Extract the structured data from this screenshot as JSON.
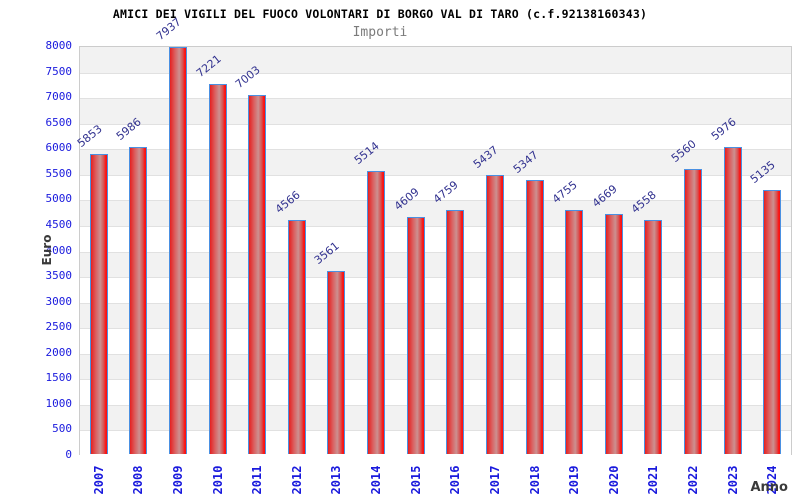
{
  "header": {
    "title": "AMICI DEI VIGILI DEL FUOCO VOLONTARI DI BORGO VAL DI TARO (c.f.92138160343)",
    "subtitle": "Importi"
  },
  "chart_data": {
    "type": "bar",
    "title": "AMICI DEI VIGILI DEL FUOCO VOLONTARI DI BORGO VAL DI TARO (c.f.92138160343)",
    "subtitle": "Importi",
    "xlabel": "Anno",
    "ylabel": "Euro",
    "categories": [
      "2007",
      "2008",
      "2009",
      "2010",
      "2011",
      "2012",
      "2013",
      "2014",
      "2015",
      "2016",
      "2017",
      "2018",
      "2019",
      "2020",
      "2021",
      "2022",
      "2023",
      "2024"
    ],
    "values": [
      5853,
      5986,
      7937,
      7221,
      7003,
      4566,
      3561,
      5514,
      4609,
      4759,
      5437,
      5347,
      4755,
      4669,
      4558,
      5560,
      5976,
      5135
    ],
    "ylim": [
      0,
      8000
    ],
    "ytick_step": 500,
    "grid": "horizontal-bands-alternating",
    "legend": "none",
    "value_labels": "above-bars-rotated"
  },
  "colors": {
    "bar_fill_main": "#e62020",
    "bar_fill_light": "#cc9090",
    "bar_border": "#4a90e2",
    "tick_label": "#1919dd",
    "value_label": "#31318f",
    "band_gray": "#f2f2f2",
    "band_white": "#ffffff",
    "grid_line": "#e1e1e1",
    "plot_border": "#cccccc",
    "axis_title": "#3a3a3a",
    "title_color": "#000000",
    "subtitle_color": "#7b7b7b"
  }
}
